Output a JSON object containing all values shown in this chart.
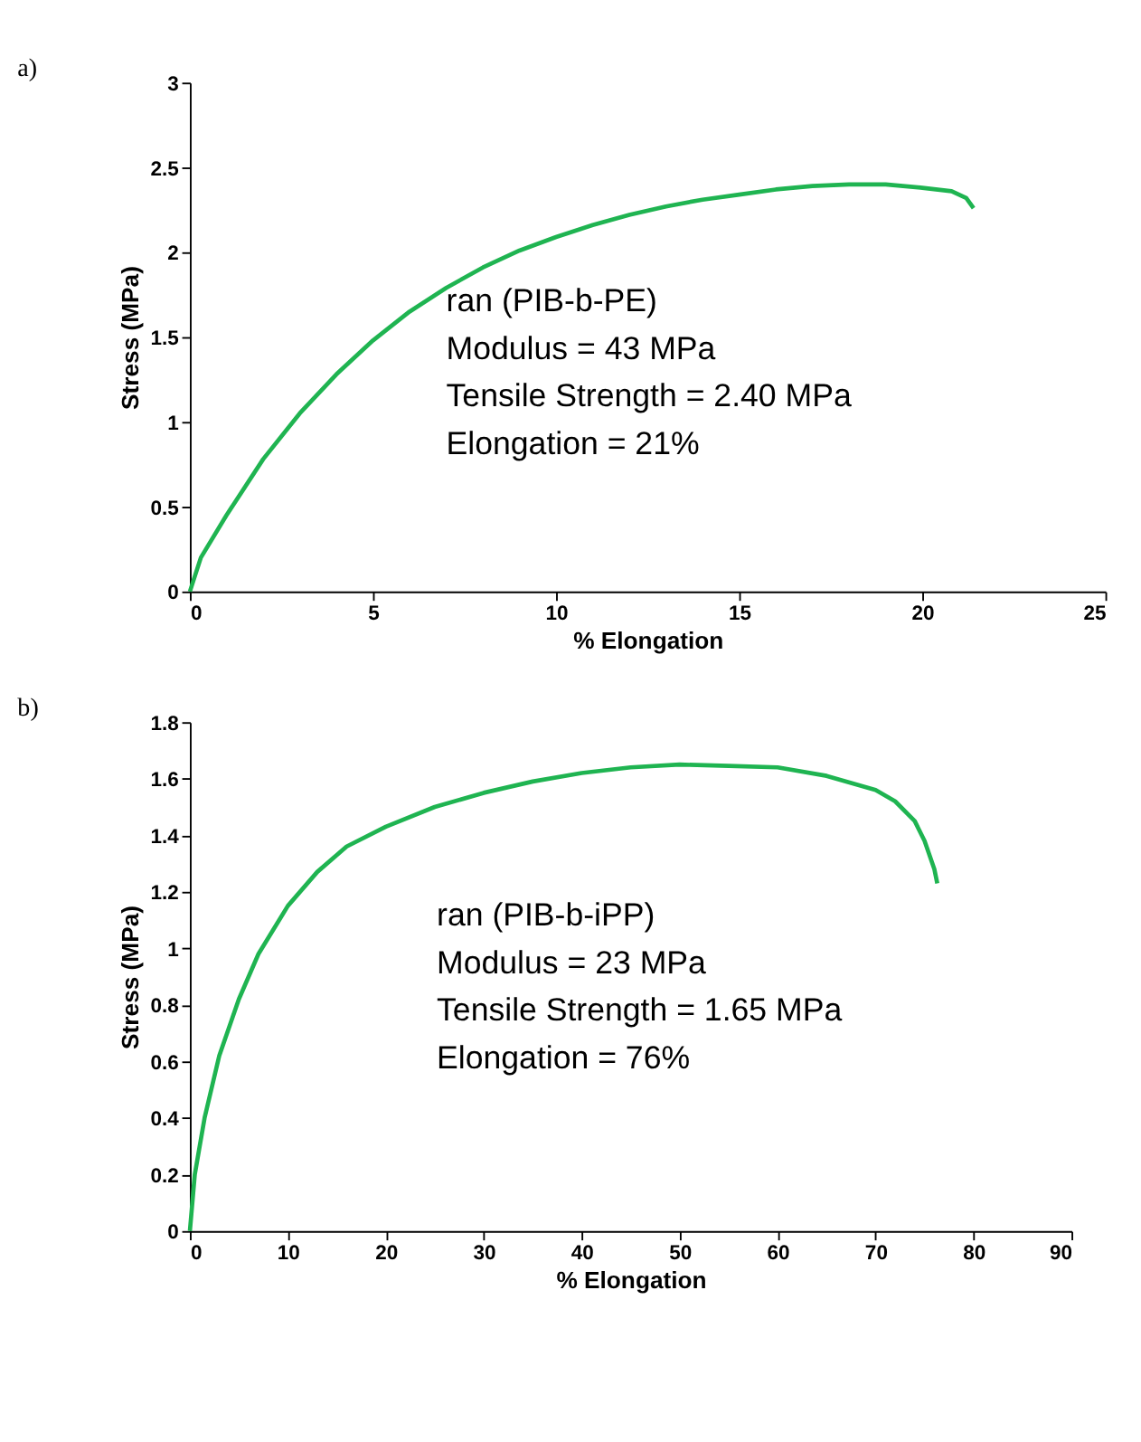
{
  "chart_data": [
    {
      "type": "line",
      "title": "a)",
      "xlabel": "% Elongation",
      "ylabel": "Stress (MPa)",
      "xlim": [
        0,
        25
      ],
      "ylim": [
        0,
        3
      ],
      "xticks": [
        0,
        5,
        10,
        15,
        20,
        25
      ],
      "yticks": [
        0,
        0.5,
        1,
        1.5,
        2,
        2.5,
        3
      ],
      "grid": false,
      "annotations": [
        "ran (PIB-b-PE)",
        "Modulus = 43 MPa",
        "Tensile Strength = 2.40 MPa",
        "Elongation = 21%"
      ],
      "series": [
        {
          "color": "#1fb451",
          "x": [
            0,
            0.3,
            1,
            2,
            3,
            4,
            5,
            6,
            7,
            8,
            9,
            10,
            11,
            12,
            13,
            14,
            15,
            16,
            17,
            18,
            19,
            20,
            20.8,
            21.2,
            21.4
          ],
          "values": [
            0,
            0.2,
            0.45,
            0.78,
            1.05,
            1.28,
            1.48,
            1.65,
            1.79,
            1.91,
            2.01,
            2.09,
            2.16,
            2.22,
            2.27,
            2.31,
            2.34,
            2.37,
            2.39,
            2.4,
            2.4,
            2.38,
            2.36,
            2.32,
            2.26
          ]
        }
      ]
    },
    {
      "type": "line",
      "title": "b)",
      "xlabel": "% Elongation",
      "ylabel": "Stress (MPa)",
      "xlim": [
        0,
        90
      ],
      "ylim": [
        0,
        1.8
      ],
      "xticks": [
        0,
        10,
        20,
        30,
        40,
        50,
        60,
        70,
        80,
        90
      ],
      "yticks": [
        0,
        0.2,
        0.4,
        0.6,
        0.8,
        1,
        1.2,
        1.4,
        1.6,
        1.8
      ],
      "grid": false,
      "annotations": [
        "ran (PIB-b-iPP)",
        "Modulus = 23 MPa",
        "Tensile Strength = 1.65 MPa",
        "Elongation = 76%"
      ],
      "series": [
        {
          "color": "#1fb451",
          "x": [
            0,
            0.5,
            1.5,
            3,
            5,
            7,
            10,
            13,
            16,
            20,
            25,
            30,
            35,
            40,
            45,
            50,
            55,
            60,
            65,
            70,
            72,
            74,
            75,
            76,
            76.3
          ],
          "values": [
            0,
            0.2,
            0.4,
            0.62,
            0.82,
            0.98,
            1.15,
            1.27,
            1.36,
            1.43,
            1.5,
            1.55,
            1.59,
            1.62,
            1.64,
            1.65,
            1.645,
            1.64,
            1.61,
            1.56,
            1.52,
            1.45,
            1.38,
            1.28,
            1.23
          ]
        }
      ]
    }
  ]
}
